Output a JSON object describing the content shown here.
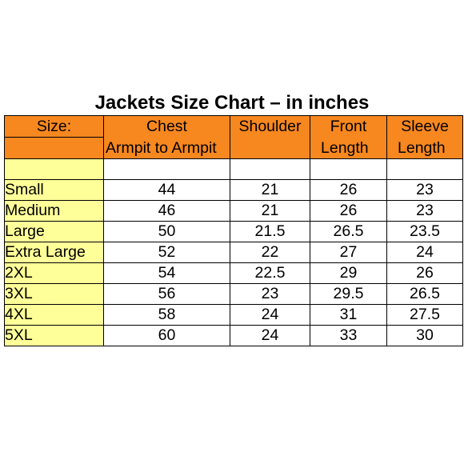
{
  "title": "Jackets Size Chart – in inches",
  "header": {
    "row1": [
      "Size:",
      "Chest",
      "Shoulder",
      "Front",
      "Sleeve"
    ],
    "row2": [
      "",
      "Armpit to Armpit",
      "",
      "Length",
      "Length"
    ]
  },
  "rows": [
    {
      "size": "Small",
      "chest": "44",
      "shoulder": "21",
      "front": "26",
      "sleeve": "23"
    },
    {
      "size": "Medium",
      "chest": "46",
      "shoulder": "21",
      "front": "26",
      "sleeve": "23"
    },
    {
      "size": "Large",
      "chest": "50",
      "shoulder": "21.5",
      "front": "26.5",
      "sleeve": "23.5"
    },
    {
      "size": "Extra Large",
      "chest": "52",
      "shoulder": "22",
      "front": "27",
      "sleeve": "24"
    },
    {
      "size": "2XL",
      "chest": "54",
      "shoulder": "22.5",
      "front": "29",
      "sleeve": "26"
    },
    {
      "size": "3XL",
      "chest": "56",
      "shoulder": "23",
      "front": "29.5",
      "sleeve": "26.5"
    },
    {
      "size": "4XL",
      "chest": "58",
      "shoulder": "24",
      "front": "31",
      "sleeve": "27.5"
    },
    {
      "size": "5XL",
      "chest": "60",
      "shoulder": "24",
      "front": "33",
      "sleeve": "30"
    }
  ],
  "colors": {
    "header_bg": "#f7871f",
    "size_column_bg": "#ffff99",
    "grid": "#000000"
  }
}
